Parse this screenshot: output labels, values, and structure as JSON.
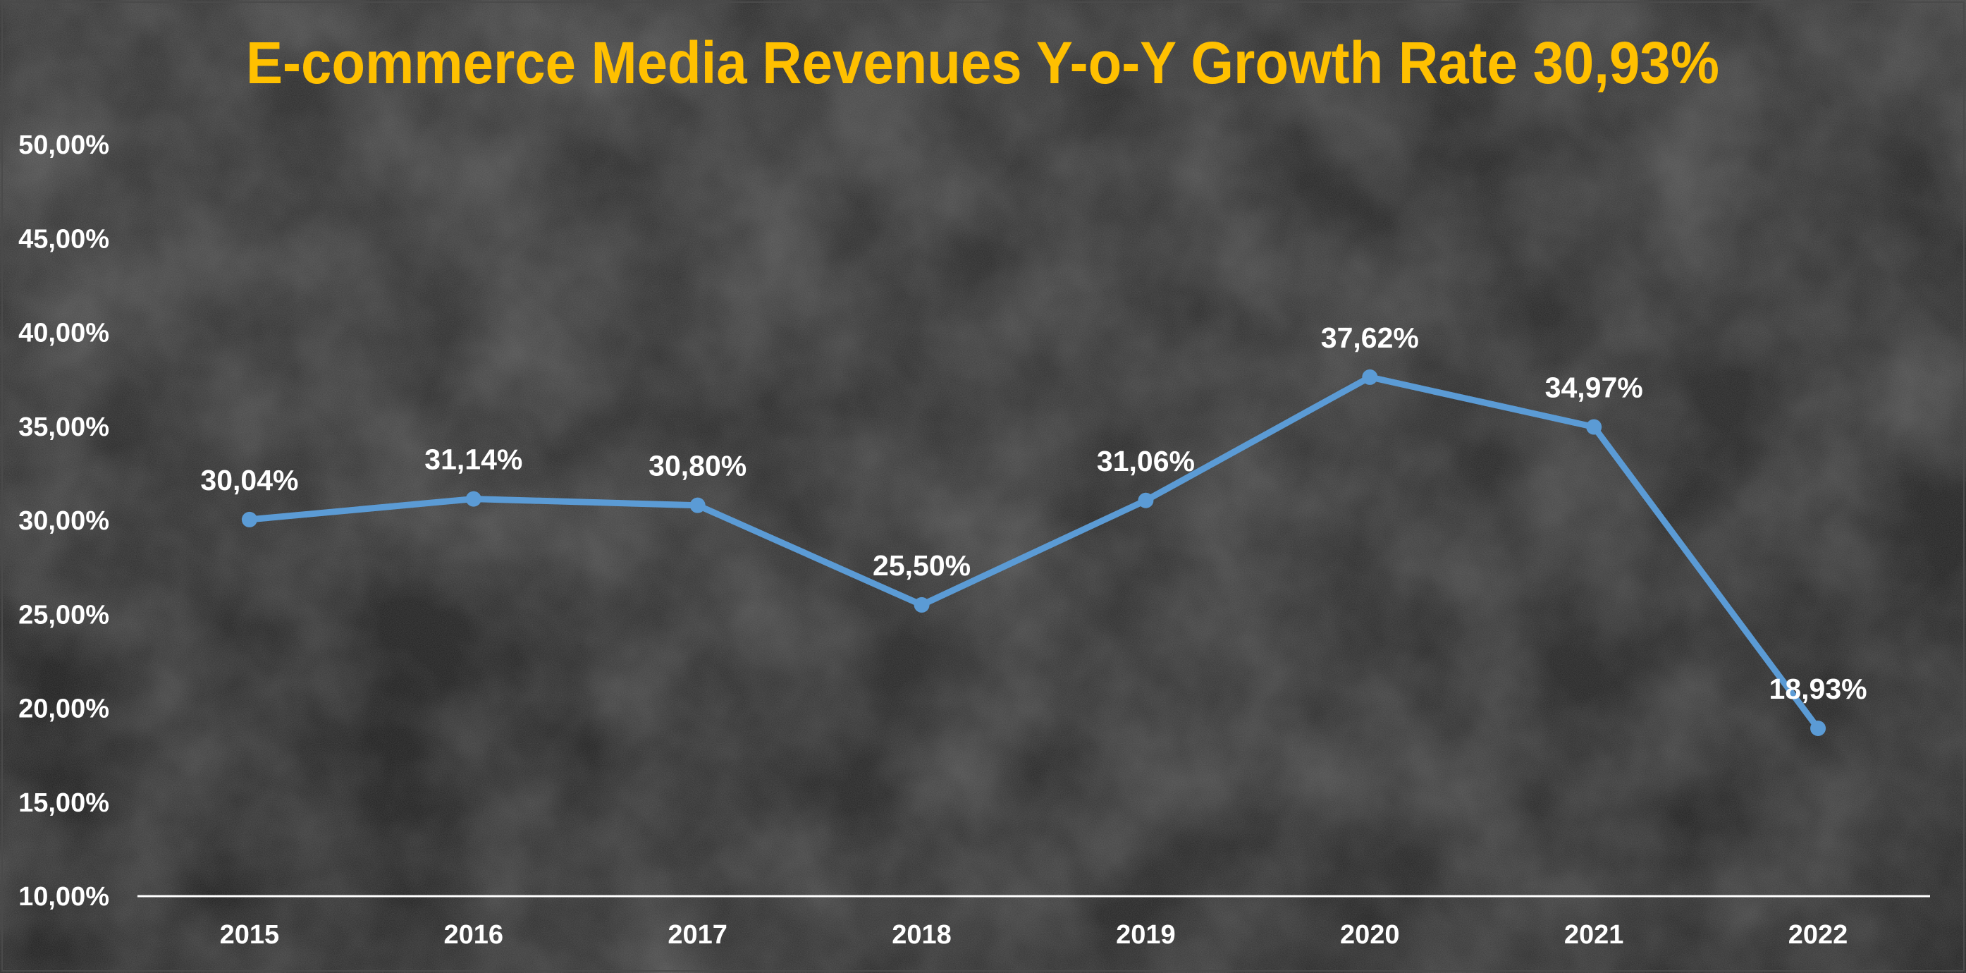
{
  "chart_data": {
    "type": "line",
    "title": "E-commerce Media Revenues Y-o-Y Growth Rate 30,93%",
    "xlabel": "",
    "ylabel": "",
    "categories": [
      "2015",
      "2016",
      "2017",
      "2018",
      "2019",
      "2020",
      "2021",
      "2022"
    ],
    "series": [
      {
        "name": "Y-o-Y Growth Rate",
        "values": [
          30.04,
          31.14,
          30.8,
          25.5,
          31.06,
          37.62,
          34.97,
          18.93
        ],
        "labels": [
          "30,04%",
          "31,14%",
          "30,80%",
          "25,50%",
          "31,06%",
          "37,62%",
          "34,97%",
          "18,93%"
        ]
      }
    ],
    "ylim": [
      10,
      50
    ],
    "yticks": [
      10,
      15,
      20,
      25,
      30,
      35,
      40,
      45,
      50
    ],
    "ytick_labels": [
      "10,00%",
      "15,00%",
      "20,00%",
      "25,00%",
      "30,00%",
      "35,00%",
      "40,00%",
      "45,00%",
      "50,00%"
    ],
    "grid": false,
    "legend": "none"
  },
  "colors": {
    "title": "#FFC000",
    "line": "#5B9BD5",
    "text": "#FFFFFF",
    "axis": "#FFFFFF"
  }
}
